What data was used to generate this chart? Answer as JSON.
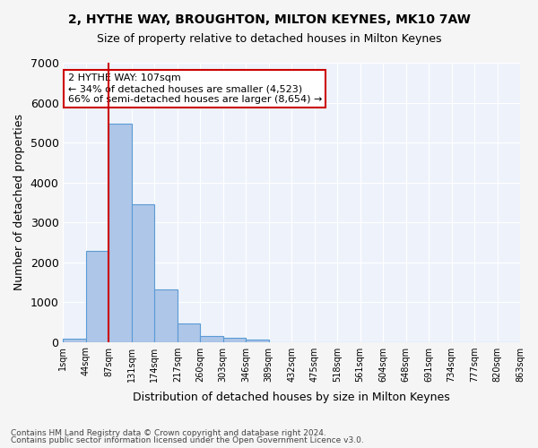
{
  "title": "2, HYTHE WAY, BROUGHTON, MILTON KEYNES, MK10 7AW",
  "subtitle": "Size of property relative to detached houses in Milton Keynes",
  "xlabel": "Distribution of detached houses by size in Milton Keynes",
  "ylabel": "Number of detached properties",
  "bar_values": [
    75,
    2280,
    5480,
    3460,
    1310,
    470,
    155,
    95,
    55,
    0,
    0,
    0,
    0,
    0,
    0,
    0,
    0,
    0,
    0,
    0
  ],
  "tick_labels": [
    "1sqm",
    "44sqm",
    "87sqm",
    "131sqm",
    "174sqm",
    "217sqm",
    "260sqm",
    "303sqm",
    "346sqm",
    "389sqm",
    "432sqm",
    "475sqm",
    "518sqm",
    "561sqm",
    "604sqm",
    "648sqm",
    "691sqm",
    "734sqm",
    "777sqm",
    "820sqm",
    "863sqm"
  ],
  "bar_color": "#aec6e8",
  "bar_edge_color": "#5b9bd5",
  "background_color": "#eef3fb",
  "grid_color": "#ffffff",
  "vline_x": 2,
  "vline_color": "#cc0000",
  "ylim": [
    0,
    7000
  ],
  "yticks": [
    0,
    1000,
    2000,
    3000,
    4000,
    5000,
    6000,
    7000
  ],
  "annotation_title": "2 HYTHE WAY: 107sqm",
  "annotation_line1": "← 34% of detached houses are smaller (4,523)",
  "annotation_line2": "66% of semi-detached houses are larger (8,654) →",
  "annotation_box_color": "#ffffff",
  "annotation_box_edge": "#cc0000",
  "footer1": "Contains HM Land Registry data © Crown copyright and database right 2024.",
  "footer2": "Contains public sector information licensed under the Open Government Licence v3.0."
}
